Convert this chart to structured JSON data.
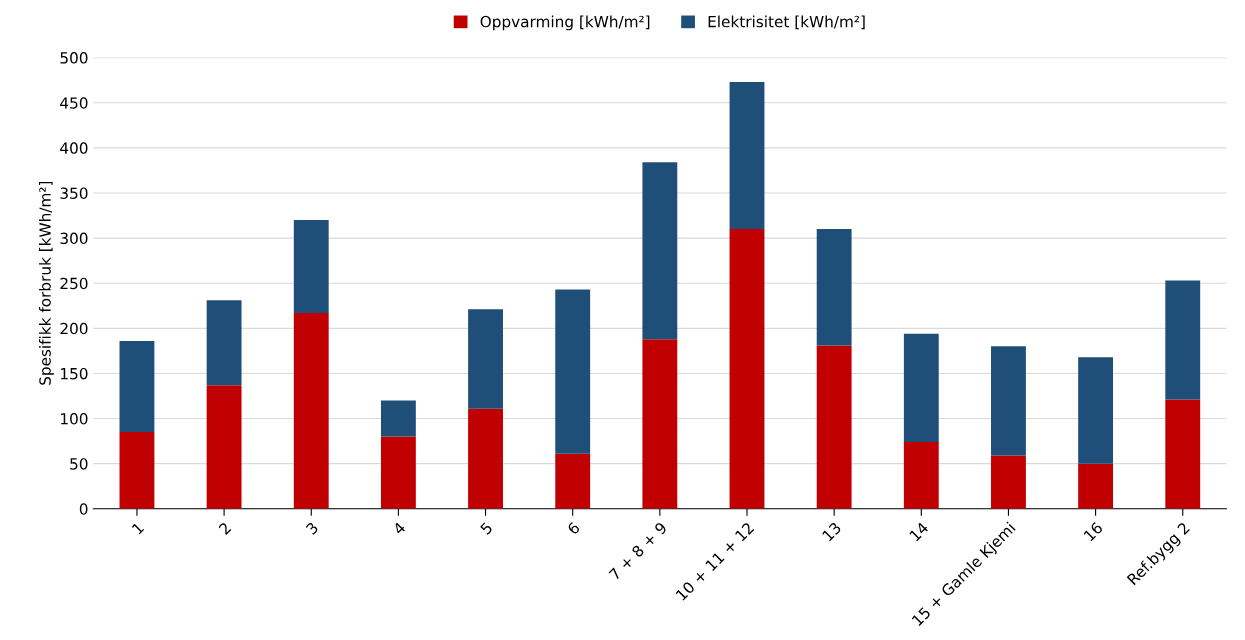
{
  "chart_data": {
    "type": "bar",
    "stacked": true,
    "ylabel": "Spesifikk forbruk [kWh/m²]",
    "categories": [
      "1",
      "2",
      "3",
      "4",
      "5",
      "6",
      "7 + 8 + 9",
      "10 + 11 + 12",
      "13",
      "14",
      "15 + Gamle Kjemi",
      "16",
      "Ref.bygg 2"
    ],
    "series": [
      {
        "name": "Oppvarming [kWh/m²]",
        "color": "#c00000",
        "values": [
          85,
          137,
          217,
          80,
          111,
          61,
          188,
          310,
          181,
          74,
          59,
          50,
          121
        ]
      },
      {
        "name": "Elektrisitet [kWh/m²]",
        "color": "#1f4e79",
        "values": [
          101,
          94,
          103,
          40,
          110,
          182,
          196,
          163,
          129,
          120,
          121,
          118,
          132
        ]
      }
    ],
    "ylim": [
      0,
      500
    ],
    "yticks": [
      0,
      50,
      100,
      150,
      200,
      250,
      300,
      350,
      400,
      450,
      500
    ],
    "grid": "y",
    "legend": "top"
  }
}
